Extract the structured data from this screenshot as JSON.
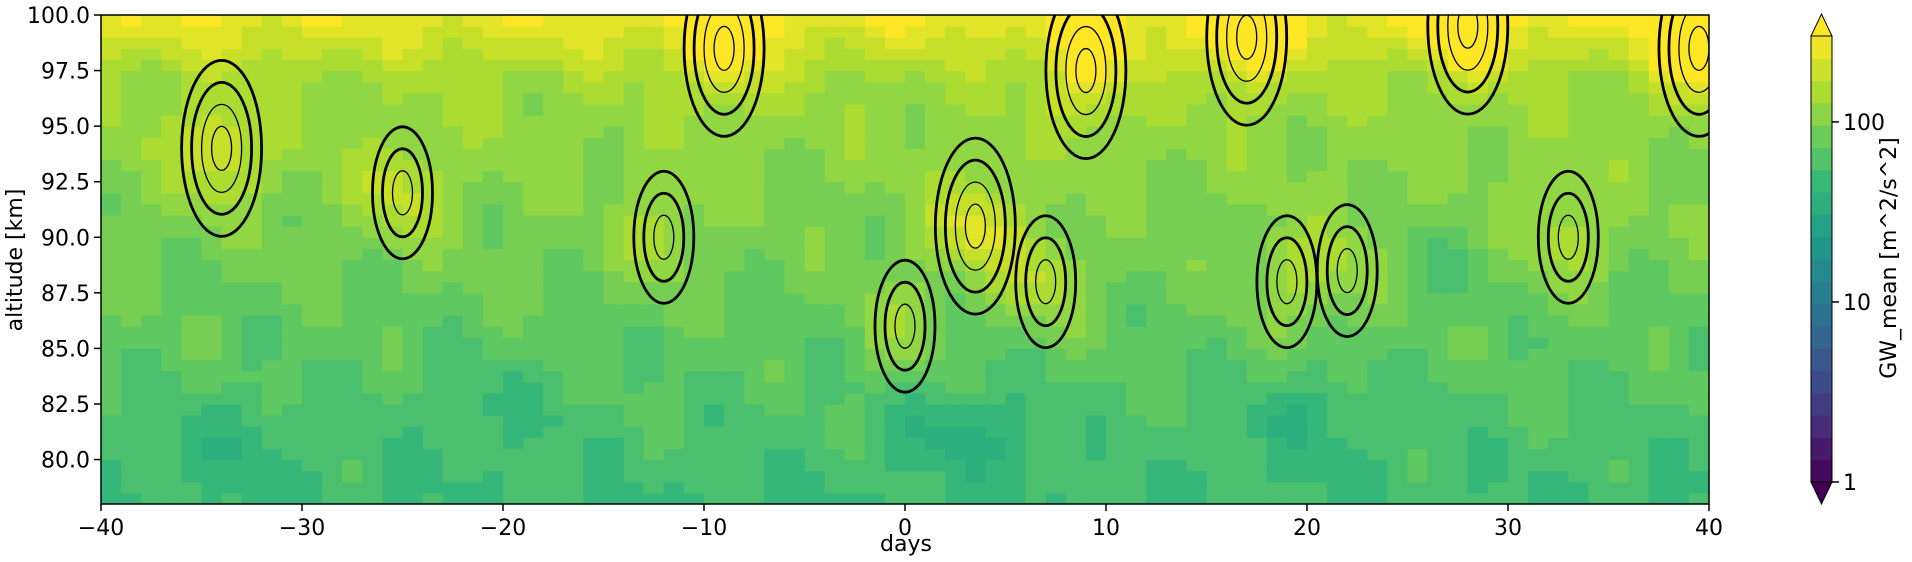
{
  "chart_data": {
    "type": "heatmap",
    "title": "",
    "xlabel": "days",
    "ylabel": "altitude [km]",
    "xlim": [
      -40,
      40
    ],
    "ylim": [
      78,
      100
    ],
    "xticks": [
      "−40",
      "−30",
      "−20",
      "−10",
      "0",
      "10",
      "20",
      "30",
      "40"
    ],
    "xtick_values": [
      -40,
      -30,
      -20,
      -10,
      0,
      10,
      20,
      30,
      40
    ],
    "yticks": [
      "80.0",
      "82.5",
      "85.0",
      "87.5",
      "90.0",
      "92.5",
      "95.0",
      "97.5",
      "100.0"
    ],
    "ytick_values": [
      80,
      82.5,
      85,
      87.5,
      90,
      92.5,
      95,
      97.5,
      100
    ],
    "colorbar": {
      "label": "GW_mean [m^2/s^2]",
      "scale": "log",
      "range": [
        1,
        300
      ],
      "ticks": [
        "1",
        "10",
        "100"
      ],
      "tick_values": [
        1,
        10,
        100
      ],
      "extend": "both",
      "colormap": "viridis"
    },
    "field_description": "GW_mean increases with altitude; highest values (~150-300) above 97 km, lowest (~40-60) near 80-84 km; local maxima around days -34, -25, -12, 3, 7, 9, 19, 22, 33",
    "maxima": [
      {
        "day": 3.5,
        "altitude": 90.5,
        "value": 220
      },
      {
        "day": 0,
        "altitude": 86,
        "value": 150
      },
      {
        "day": 7,
        "altitude": 88,
        "value": 170
      },
      {
        "day": 9,
        "altitude": 97.5,
        "value": 200
      },
      {
        "day": -34,
        "altitude": 94,
        "value": 180
      },
      {
        "day": -25,
        "altitude": 92,
        "value": 160
      },
      {
        "day": -12,
        "altitude": 90,
        "value": 140
      },
      {
        "day": 19,
        "altitude": 88,
        "value": 140
      },
      {
        "day": 22,
        "altitude": 88.5,
        "value": 135
      },
      {
        "day": 33,
        "altitude": 90,
        "value": 150
      },
      {
        "day": -9,
        "altitude": 98.5,
        "value": 200
      },
      {
        "day": 17,
        "altitude": 99,
        "value": 220
      },
      {
        "day": 28,
        "altitude": 99.5,
        "value": 230
      },
      {
        "day": 39.5,
        "altitude": 98.5,
        "value": 220
      }
    ],
    "minima": [
      {
        "day": 3,
        "altitude": 81.5,
        "value": 45
      },
      {
        "day": 20,
        "altitude": 82,
        "value": 50
      },
      {
        "day": -20,
        "altitude": 82.5,
        "value": 55
      },
      {
        "day": -33,
        "altitude": 81,
        "value": 55
      },
      {
        "day": 26,
        "altitude": 89,
        "value": 55
      }
    ]
  }
}
